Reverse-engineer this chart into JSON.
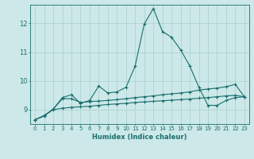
{
  "xlabel": "Humidex (Indice chaleur)",
  "bg_color": "#cce8e8",
  "line_color": "#1a6e6e",
  "grid_color": "#aacfcf",
  "xlim": [
    -0.5,
    23.5
  ],
  "ylim": [
    8.5,
    12.65
  ],
  "yticks": [
    9,
    10,
    11,
    12
  ],
  "xticks": [
    0,
    1,
    2,
    3,
    4,
    5,
    6,
    7,
    8,
    9,
    10,
    11,
    12,
    13,
    14,
    15,
    16,
    17,
    18,
    19,
    20,
    21,
    22,
    23
  ],
  "line1_x": [
    0,
    1,
    2,
    3,
    4,
    5,
    6,
    7,
    8,
    9,
    10,
    11,
    12,
    13,
    14,
    15,
    16,
    17,
    18,
    19,
    20,
    21,
    22,
    23
  ],
  "line1_y": [
    8.65,
    8.78,
    9.02,
    9.42,
    9.52,
    9.22,
    9.32,
    9.82,
    9.58,
    9.62,
    9.78,
    10.52,
    11.98,
    12.52,
    11.72,
    11.52,
    11.08,
    10.52,
    9.78,
    9.15,
    9.15,
    9.32,
    9.42,
    9.45
  ],
  "line2_x": [
    0,
    1,
    2,
    3,
    4,
    5,
    6,
    7,
    8,
    9,
    10,
    11,
    12,
    13,
    14,
    15,
    16,
    17,
    18,
    19,
    20,
    21,
    22,
    23
  ],
  "line2_y": [
    8.65,
    8.78,
    9.02,
    9.38,
    9.38,
    9.25,
    9.28,
    9.3,
    9.32,
    9.35,
    9.38,
    9.42,
    9.45,
    9.48,
    9.52,
    9.55,
    9.58,
    9.62,
    9.68,
    9.72,
    9.75,
    9.8,
    9.88,
    9.45
  ],
  "line3_x": [
    0,
    1,
    2,
    3,
    4,
    5,
    6,
    7,
    8,
    9,
    10,
    11,
    12,
    13,
    14,
    15,
    16,
    17,
    18,
    19,
    20,
    21,
    22,
    23
  ],
  "line3_y": [
    8.65,
    8.8,
    9.0,
    9.05,
    9.08,
    9.1,
    9.12,
    9.15,
    9.18,
    9.2,
    9.22,
    9.25,
    9.27,
    9.29,
    9.31,
    9.33,
    9.35,
    9.37,
    9.4,
    9.42,
    9.45,
    9.48,
    9.5,
    9.45
  ],
  "marker_size": 3,
  "line_width": 0.8,
  "tick_fontsize": 5,
  "label_fontsize": 6
}
